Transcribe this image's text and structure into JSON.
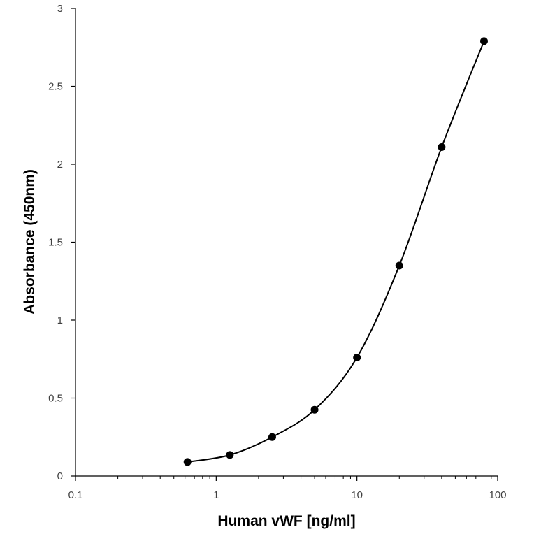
{
  "chart_data": {
    "type": "scatter",
    "title": "",
    "xlabel": "Human vWF [ng/ml]",
    "ylabel": "Absorbance (450nm)",
    "x_scale": "log",
    "xlim": [
      0.1,
      100
    ],
    "ylim": [
      0,
      3
    ],
    "x_ticks": [
      "0.1",
      "1",
      "10",
      "100"
    ],
    "x_tick_values": [
      0.1,
      1,
      10,
      100
    ],
    "y_ticks": [
      "0",
      "0.5",
      "1",
      "1.5",
      "2",
      "2.5",
      "3"
    ],
    "y_tick_values": [
      0,
      0.5,
      1,
      1.5,
      2,
      2.5,
      3
    ],
    "grid": false,
    "legend": "none",
    "series": [
      {
        "name": "",
        "x": [
          0.625,
          1.25,
          2.5,
          5,
          10,
          20,
          40,
          80
        ],
        "y": [
          0.09,
          0.135,
          0.25,
          0.425,
          0.76,
          1.35,
          2.11,
          2.79
        ],
        "fit_line": "smooth",
        "color": "#000000"
      }
    ]
  }
}
